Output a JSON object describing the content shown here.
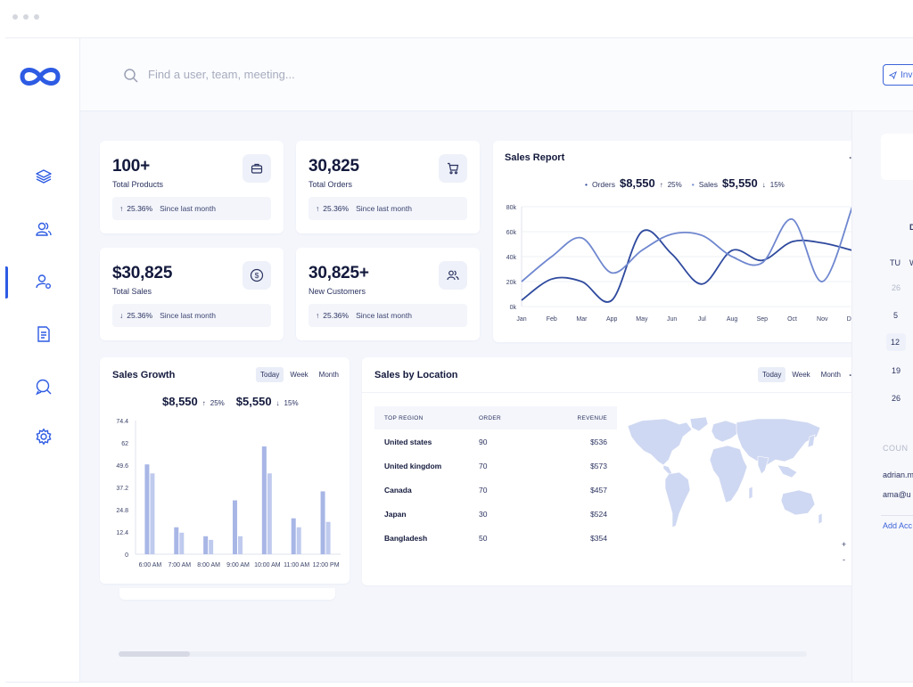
{
  "search": {
    "placeholder": "Find a user, team, meeting..."
  },
  "invite": {
    "label": "Invi"
  },
  "colors": {
    "accent": "#2d5be3",
    "dark_series": "#2f4a9e",
    "light_series": "#6f87cf",
    "bar": "#a8b6e6",
    "map": "#cfd8f2"
  },
  "sidebar": {
    "items": [
      {
        "name": "layers-icon"
      },
      {
        "name": "users-icon"
      },
      {
        "name": "user-settings-icon",
        "active": true
      },
      {
        "name": "document-icon"
      },
      {
        "name": "chat-icon"
      },
      {
        "name": "gear-icon"
      }
    ]
  },
  "stats": [
    {
      "value": "100+",
      "label": "Total Products",
      "change": "25.36%",
      "since": "Since last month",
      "dir": "up",
      "icon": "briefcase-icon"
    },
    {
      "value": "30,825",
      "label": "Total Orders",
      "change": "25.36%",
      "since": "Since last month",
      "dir": "up",
      "icon": "cart-icon"
    },
    {
      "value": "$30,825",
      "label": "Total Sales",
      "change": "25.36%",
      "since": "Since last month",
      "dir": "down",
      "icon": "dollar-icon"
    },
    {
      "value": "30,825+",
      "label": "New Customers",
      "change": "25.36%",
      "since": "Since last month",
      "dir": "up",
      "icon": "customers-icon"
    }
  ],
  "sales_report": {
    "title": "Sales Report",
    "orders_label": "Orders",
    "orders_value": "$8,550",
    "orders_change": "25%",
    "sales_label": "Sales",
    "sales_value": "$5,550",
    "sales_change": "15%"
  },
  "sales_growth": {
    "title": "Sales Growth",
    "tabs": [
      "Today",
      "Week",
      "Month"
    ],
    "active_tab": "Today",
    "v1": "$8,550",
    "c1": "25%",
    "v2": "$5,550",
    "c2": "15%"
  },
  "location": {
    "title": "Sales by Location",
    "tabs": [
      "Today",
      "Week",
      "Month"
    ],
    "headers": [
      "TOP REGION",
      "ORDER",
      "REVENUE"
    ],
    "rows": [
      [
        "United states",
        "90",
        "$536"
      ],
      [
        "United kingdom",
        "70",
        "$573"
      ],
      [
        "Canada",
        "70",
        "$457"
      ],
      [
        "Japan",
        "30",
        "$524"
      ],
      [
        "Bangladesh",
        "50",
        "$354"
      ]
    ],
    "zoom_in": "+",
    "zoom_out": "-"
  },
  "right_panel": {
    "day": "TU",
    "dates": [
      "26",
      "5",
      "12",
      "19",
      "26"
    ],
    "section": "COUN",
    "email1": "adrian.m",
    "email2": "ama@u",
    "add": "Add Acc"
  },
  "chart_data": [
    {
      "type": "line",
      "x": [
        "Jan",
        "Feb",
        "Mar",
        "App",
        "May",
        "Jun",
        "Jul",
        "Aug",
        "Sep",
        "Oct",
        "Nov",
        "Dec"
      ],
      "yticks": [
        "80k",
        "60k",
        "40k",
        "20k",
        "0k"
      ],
      "ylim": [
        0,
        80000
      ],
      "series": [
        {
          "name": "Orders",
          "values": [
            5000,
            22000,
            20000,
            5000,
            60000,
            42000,
            18000,
            45000,
            37000,
            52000,
            51000,
            45000
          ]
        },
        {
          "name": "Sales",
          "values": [
            20000,
            40000,
            55000,
            27000,
            45000,
            58000,
            57000,
            40000,
            35000,
            70000,
            20000,
            80000
          ]
        }
      ]
    },
    {
      "type": "bar",
      "categories": [
        "6:00 AM",
        "7:00 AM",
        "8:00 AM",
        "9:00 AM",
        "10:00 AM",
        "11:00 AM",
        "12:00 PM"
      ],
      "yticks": [
        "74.4",
        "62",
        "49.6",
        "37.2",
        "24.8",
        "12.4",
        "0"
      ],
      "ylim": [
        0,
        74.4
      ],
      "series": [
        {
          "values": [
            50,
            15,
            10,
            30,
            60,
            20,
            35
          ]
        },
        {
          "values": [
            45,
            12,
            8,
            10,
            45,
            15,
            18
          ]
        }
      ]
    }
  ]
}
